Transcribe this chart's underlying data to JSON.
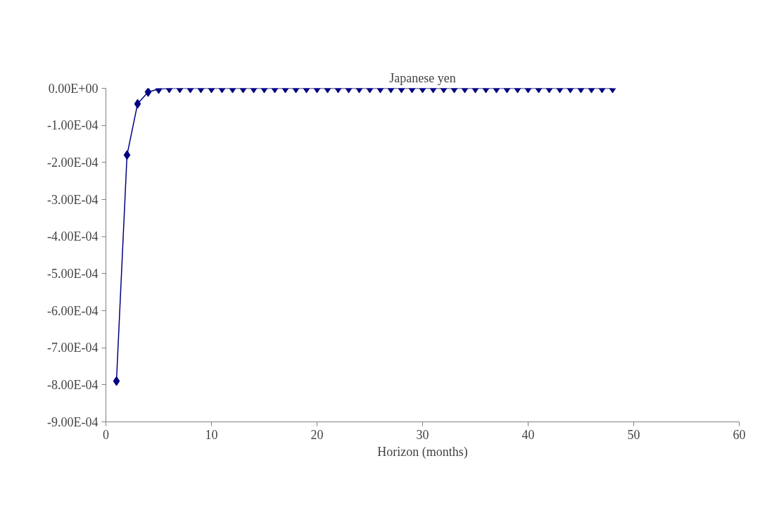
{
  "chart_data": {
    "type": "line",
    "title": "Japanese yen",
    "xlabel": "Horizon (months)",
    "x": [
      1,
      2,
      3,
      4,
      5,
      6,
      7,
      8,
      9,
      10,
      11,
      12,
      13,
      14,
      15,
      16,
      17,
      18,
      19,
      20,
      21,
      22,
      23,
      24,
      25,
      26,
      27,
      28,
      29,
      30,
      31,
      32,
      33,
      34,
      35,
      36,
      37,
      38,
      39,
      40,
      41,
      42,
      43,
      44,
      45,
      46,
      47,
      48
    ],
    "values": [
      -0.00079,
      -0.00018,
      -4.2e-05,
      -1e-05,
      -2e-06,
      0,
      0,
      0,
      0,
      0,
      0,
      0,
      0,
      0,
      0,
      0,
      0,
      0,
      0,
      0,
      0,
      0,
      0,
      0,
      0,
      0,
      0,
      0,
      0,
      0,
      0,
      0,
      0,
      0,
      0,
      0,
      0,
      0,
      0,
      0,
      0,
      0,
      0,
      0,
      0,
      0,
      0,
      0
    ],
    "color": "#000080",
    "marker": "diamond",
    "line_style": "solid",
    "xlim": [
      0,
      60
    ],
    "xticks": [
      0,
      10,
      20,
      30,
      40,
      50,
      60
    ],
    "ylim": [
      -0.0009,
      0
    ],
    "yticks": [
      {
        "value": 0,
        "label": "0.00E+00"
      },
      {
        "value": -0.0001,
        "label": "-1.00E-04"
      },
      {
        "value": -0.0002,
        "label": "-2.00E-04"
      },
      {
        "value": -0.0003,
        "label": "-3.00E-04"
      },
      {
        "value": -0.0004,
        "label": "-4.00E-04"
      },
      {
        "value": -0.0005,
        "label": "-5.00E-04"
      },
      {
        "value": -0.0006,
        "label": "-6.00E-04"
      },
      {
        "value": -0.0007,
        "label": "-7.00E-04"
      },
      {
        "value": -0.0008,
        "label": "-8.00E-04"
      },
      {
        "value": -0.0009,
        "label": "-9.00E-04"
      }
    ]
  }
}
